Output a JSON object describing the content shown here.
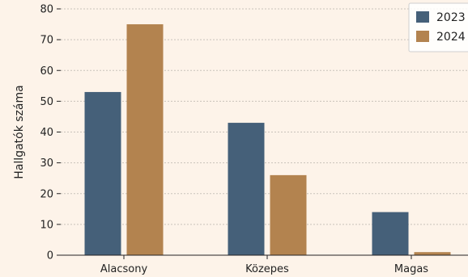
{
  "chart_data": {
    "type": "bar",
    "categories": [
      "Alacsony",
      "Közepes",
      "Magas"
    ],
    "series": [
      {
        "name": "2023",
        "values": [
          53,
          43,
          14
        ],
        "color": "#456079"
      },
      {
        "name": "2024",
        "values": [
          75,
          26,
          1
        ],
        "color": "#b3834f"
      }
    ],
    "xlabel": "",
    "ylabel": "Hallgatók száma",
    "ylim": [
      0,
      80
    ],
    "yticks": [
      0,
      10,
      20,
      30,
      40,
      50,
      60,
      70,
      80
    ],
    "grid": true,
    "legend_position": "top-right"
  }
}
